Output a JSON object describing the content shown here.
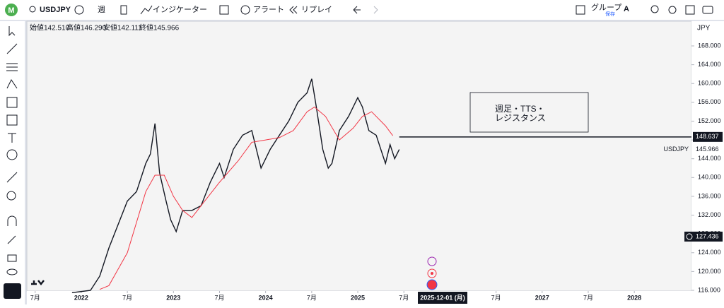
{
  "toolbar": {
    "avatar": "M",
    "symbol": "USDJPY",
    "interval": "週",
    "indicators": "インジケーター",
    "alert": "アラート",
    "replay": "リプレイ",
    "group": "グループ",
    "save": "保存",
    "a": "A"
  },
  "ohlc": [
    "始値142.510",
    "高値146.290",
    "安値142.111",
    "終値145.966"
  ],
  "currency": "JPY",
  "annotation": [
    "週足・TTS・",
    "レジスタンス"
  ],
  "chart_data": {
    "type": "line",
    "series": [
      {
        "name": "USDJPY",
        "color": "#131722",
        "x": [
          2021.9,
          2022.1,
          2022.2,
          2022.3,
          2022.4,
          2022.5,
          2022.6,
          2022.7,
          2022.75,
          2022.8,
          2022.85,
          2022.92,
          2022.97,
          2023.03,
          2023.1,
          2023.2,
          2023.3,
          2023.4,
          2023.5,
          2023.55,
          2023.65,
          2023.75,
          2023.85,
          2023.95,
          2024.05,
          2024.15,
          2024.25,
          2024.35,
          2024.45,
          2024.5,
          2024.55,
          2024.62,
          2024.68,
          2024.72,
          2024.8,
          2024.9,
          2025.0,
          2025.05,
          2025.12,
          2025.2,
          2025.25,
          2025.3,
          2025.35,
          2025.4,
          2025.45
        ],
        "values": [
          115.5,
          116,
          119,
          125,
          130,
          135,
          137,
          143,
          145,
          151.5,
          141,
          135,
          131,
          128.5,
          133,
          133,
          134,
          139,
          143,
          140,
          146,
          149,
          150,
          142,
          146,
          149,
          152,
          156,
          158,
          161,
          155,
          146,
          142,
          143,
          150,
          153,
          157,
          155,
          150,
          149,
          146,
          143,
          147,
          144,
          145.966
        ]
      },
      {
        "color": "#f23645",
        "x": [
          2022.2,
          2022.3,
          2022.5,
          2022.7,
          2022.8,
          2022.9,
          2023.0,
          2023.1,
          2023.2,
          2023.3,
          2023.5,
          2023.7,
          2023.85,
          2024.0,
          2024.15,
          2024.3,
          2024.45,
          2024.53,
          2024.65,
          2024.8,
          2024.95,
          2025.05,
          2025.15,
          2025.3,
          2025.38
        ],
        "values": [
          116.2,
          117,
          124,
          137,
          140.5,
          140.5,
          136,
          133,
          131.5,
          134,
          139,
          143.5,
          147.5,
          148,
          148.5,
          150,
          154,
          155,
          153,
          148,
          150.5,
          153,
          154,
          151,
          148.9
        ]
      }
    ],
    "ylim": [
      116,
      168
    ],
    "xlim": [
      2021.41,
      2028.62
    ],
    "yticks": [
      {
        "value": 116,
        "label": "116.000"
      },
      {
        "value": 120,
        "label": "120.000"
      },
      {
        "value": 124,
        "label": "124.000"
      },
      {
        "value": 128,
        "label": "128.000"
      },
      {
        "value": 132,
        "label": "132.000"
      },
      {
        "value": 136,
        "label": "136.000"
      },
      {
        "value": 140,
        "label": "140.000"
      },
      {
        "value": 144,
        "label": "144.000"
      },
      {
        "value": 148,
        "label": "148.000"
      },
      {
        "value": 152,
        "label": "152.000"
      },
      {
        "value": 156,
        "label": "156.000"
      },
      {
        "value": 160,
        "label": "160.000"
      },
      {
        "value": 164,
        "label": "164.000"
      },
      {
        "value": 168,
        "label": "168.000"
      }
    ],
    "xticks": [
      {
        "value": 2021.5,
        "label": "7月"
      },
      {
        "value": 2022,
        "label": "2022"
      },
      {
        "value": 2022.5,
        "label": "7月"
      },
      {
        "value": 2023,
        "label": "2023"
      },
      {
        "value": 2023.5,
        "label": "7月"
      },
      {
        "value": 2024,
        "label": "2024"
      },
      {
        "value": 2024.5,
        "label": "7月"
      },
      {
        "value": 2025,
        "label": "2025"
      },
      {
        "value": 2025.5,
        "label": "7月"
      },
      {
        "value": 2026.5,
        "label": "7月"
      },
      {
        "value": 2027,
        "label": "2027"
      },
      {
        "value": 2027.5,
        "label": "7月"
      },
      {
        "value": 2028,
        "label": "2028"
      }
    ],
    "crosshair_x": {
      "value": 2025.92,
      "label": "2025-12-01 (月)"
    },
    "crosshair_y": 127.436,
    "resistance": 148.637,
    "last_price": 145.966,
    "last_label": "USDJPY"
  }
}
